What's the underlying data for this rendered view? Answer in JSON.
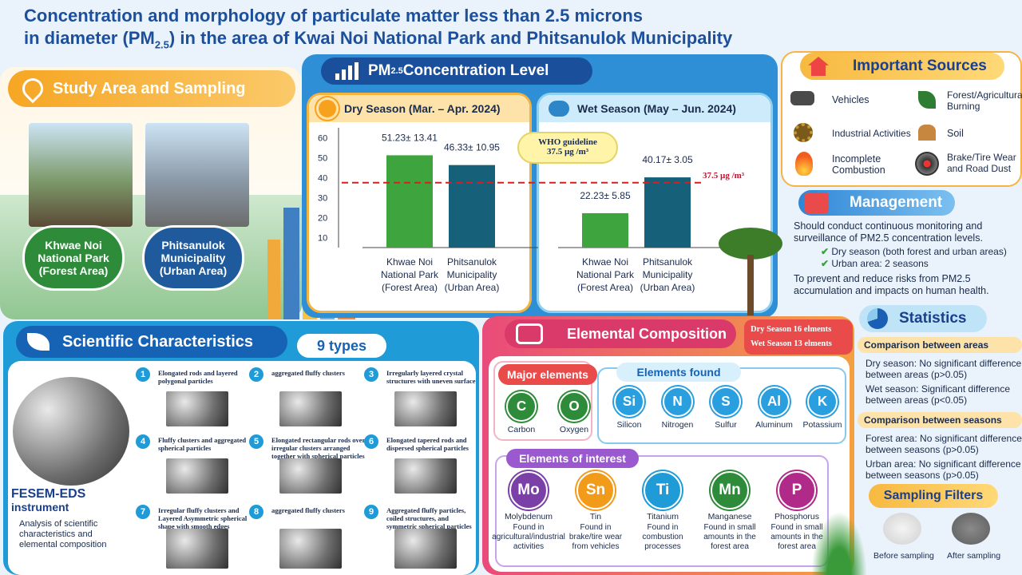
{
  "title": {
    "line1": "Concentration and morphology of particulate matter less than 2.5 microns",
    "line2a": "in diameter (PM",
    "line2sub": "2.5",
    "line2b": ") in the area of Kwai Noi National Park and Phitsanulok Municipality"
  },
  "study": {
    "header": "Study Area and Sampling",
    "site1": "Khwae Noi National Park (Forest Area)",
    "site2": "Phitsanulok Municipality (Urban Area)"
  },
  "concentration": {
    "header_a": "PM",
    "header_sub": "2.5",
    "header_b": " Concentration Level",
    "who_line1": "WHO guideline",
    "who_line2": "37.5 µg /m³",
    "who_side": "37.5 µg /m³",
    "ticks": [
      "60",
      "50",
      "40",
      "30",
      "20",
      "10"
    ]
  },
  "chart_data": {
    "type": "bar",
    "categories": [
      "Khwae Noi National Park (Forest Area)",
      "Phitsanulok Municipality (Urban Area)"
    ],
    "ylim": [
      5,
      65
    ],
    "threshold": 37.5,
    "panels": [
      {
        "title": "Dry Season (Mar. – Apr. 2024)",
        "values": [
          51.23,
          46.33
        ],
        "labels": [
          "51.23± 13.41",
          "46.33± 10.95"
        ],
        "colors": [
          "#3ea53e",
          "#17607a"
        ]
      },
      {
        "title": "Wet Season (May – Jun. 2024)",
        "values": [
          22.23,
          40.17
        ],
        "labels": [
          "22.23± 5.85",
          "40.17± 3.05"
        ],
        "colors": [
          "#3ea53e",
          "#17607a"
        ]
      }
    ],
    "xlabels": [
      [
        "Khwae Noi",
        "National Park",
        "(Forest Area)"
      ],
      [
        "Phitsanulok",
        "Municipality",
        "(Urban Area)"
      ]
    ]
  },
  "sources": {
    "header": "Important Sources",
    "items": [
      "Vehicles",
      "Forest/Agricultural Burning",
      "Industrial Activities",
      "Soil",
      "Incomplete Combustion",
      "Brake/Tire Wear and Road Dust"
    ]
  },
  "management": {
    "header": "Management",
    "line1": "Should conduct continuous monitoring and surveillance of PM2.5 concentration levels.",
    "check1": "Dry season (both forest and urban areas)",
    "check2": "Urban area: 2 seasons",
    "line2": "To prevent and reduce risks from PM2.5 accumulation and impacts on human health."
  },
  "scientific": {
    "header": "Scientific Characteristics",
    "badge": "9 types",
    "instrument": "FESEM-EDS",
    "instrument2": "instrument",
    "desc": "Analysis of scientific characteristics and elemental composition",
    "types": [
      "Elongated rods and layered polygonal particles",
      "aggregated fluffy clusters",
      "Irregularly layered crystal structures with uneven surface",
      "Fluffy clusters and aggregated spherical particles",
      "Elongated rectangular rods over irregular clusters arranged together with spherical particles",
      "Elongated tapered rods and dispersed spherical particles",
      "Irregular fluffy clusters and Layered Asymmetric spherical shape with smooth edges",
      "aggregated fluffy clusters",
      "Aggregated fluffy particles, coiled structures, and symmetric spherical particles"
    ],
    "nums": [
      "1",
      "2",
      "3",
      "4",
      "5",
      "6",
      "7",
      "8",
      "9"
    ]
  },
  "elemental": {
    "header": "Elemental Composition",
    "dry": "Dry Season 16 elments",
    "wet": "Wet Season 13 elments",
    "major": "Major elements",
    "found": "Elements found",
    "interest": "Elements of interest",
    "major_items": [
      {
        "s": "C",
        "n": "Carbon"
      },
      {
        "s": "O",
        "n": "Oxygen"
      }
    ],
    "found_items": [
      {
        "s": "Si",
        "n": "Silicon"
      },
      {
        "s": "N",
        "n": "Nitrogen"
      },
      {
        "s": "S",
        "n": "Sulfur"
      },
      {
        "s": "Al",
        "n": "Aluminum"
      },
      {
        "s": "K",
        "n": "Potassium"
      }
    ],
    "interest_items": [
      {
        "s": "Mo",
        "n": "Molybdenum",
        "d": "Found in agricultural/industrial activities"
      },
      {
        "s": "Sn",
        "n": "Tin",
        "d": "Found in brake/tire wear from vehicles"
      },
      {
        "s": "Ti",
        "n": "Titanium",
        "d": "Found in combustion processes"
      },
      {
        "s": "Mn",
        "n": "Manganese",
        "d": "Found in small amounts in the forest area"
      },
      {
        "s": "P",
        "n": "Phosphorus",
        "d": "Found in small amounts in the forest area"
      }
    ]
  },
  "statistics": {
    "header": "Statistics",
    "areas": "Comparison between areas",
    "dry": "Dry season: No significant difference between areas (p>0.05)",
    "wet": "Wet season: Significant difference between areas (p<0.05)",
    "seasons": "Comparison between seasons",
    "forest": "Forest area: No significant difference between seasons (p>0.05)",
    "urban": "Urban area: No significant difference between seasons (p>0.05)"
  },
  "filters": {
    "header": "Sampling Filters",
    "before": "Before sampling",
    "after": "After sampling"
  }
}
